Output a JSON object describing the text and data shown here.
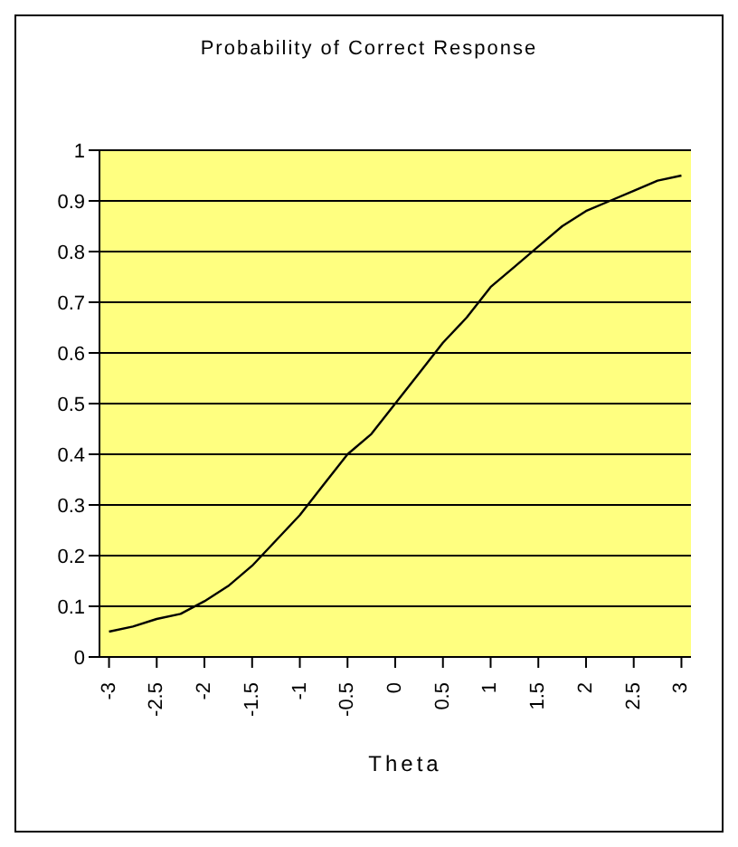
{
  "chart_data": {
    "type": "line",
    "title": "Probability of Correct Response",
    "xlabel": "Theta",
    "x": [
      -3,
      -2.75,
      -2.5,
      -2.25,
      -2,
      -1.75,
      -1.5,
      -1.25,
      -1,
      -0.75,
      -0.5,
      -0.25,
      0,
      0.25,
      0.5,
      0.75,
      1,
      1.25,
      1.5,
      1.75,
      2,
      2.25,
      2.5,
      2.75,
      3
    ],
    "series": [
      {
        "color": "#000000",
        "values": [
          0.05,
          0.06,
          0.075,
          0.085,
          0.11,
          0.14,
          0.18,
          0.23,
          0.28,
          0.34,
          0.4,
          0.44,
          0.5,
          0.56,
          0.62,
          0.67,
          0.73,
          0.77,
          0.81,
          0.85,
          0.88,
          0.9,
          0.92,
          0.94,
          0.95
        ]
      }
    ],
    "xlim": [
      -3.1,
      3.1
    ],
    "xticks": [
      -3,
      -2.5,
      -2,
      -1.5,
      -1,
      -0.5,
      0,
      0.5,
      1,
      1.5,
      2,
      2.5,
      3
    ],
    "ylim": [
      0,
      1
    ],
    "yticks": [
      0,
      0.1,
      0.2,
      0.3,
      0.4,
      0.5,
      0.6,
      0.7,
      0.8,
      0.9,
      1
    ],
    "grid": "y",
    "marker": "none",
    "line_style": "solid"
  }
}
